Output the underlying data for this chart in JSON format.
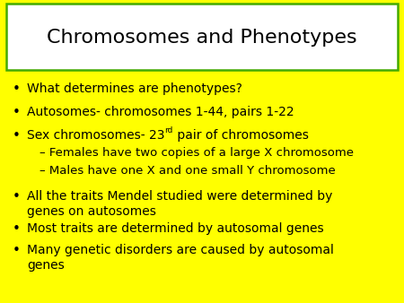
{
  "title": "Chromosomes and Phenotypes",
  "background_color": "#FFFF00",
  "title_box_bg": "#FFFFFF",
  "title_box_border": "#44AA00",
  "title_fontsize": 16,
  "bullet_fontsize": 10,
  "sub_bullet_fontsize": 9.5,
  "text_color": "#000000",
  "bullet_symbol": "•",
  "bullet_items": [
    {
      "text": "What determines are phenotypes?",
      "level": 0,
      "has_sup": false
    },
    {
      "text": "Autosomes- chromosomes 1-44, pairs 1-22",
      "level": 0,
      "has_sup": false
    },
    {
      "text_pre": "Sex chromosomes- 23",
      "sup": "rd",
      "text_post": " pair of chromosomes",
      "level": 0,
      "has_sup": true
    },
    {
      "text": "– Females have two copies of a large X chromosome",
      "level": 1,
      "has_sup": false
    },
    {
      "text": "– Males have one X and one small Y chromosome",
      "level": 1,
      "has_sup": false
    },
    {
      "text": "All the traits Mendel studied were determined by\ngenes on autosomes",
      "level": 0,
      "has_sup": false
    },
    {
      "text": "Most traits are determined by autosomal genes",
      "level": 0,
      "has_sup": false
    },
    {
      "text": "Many genetic disorders are caused by autosomal\ngenes",
      "level": 0,
      "has_sup": false
    }
  ]
}
